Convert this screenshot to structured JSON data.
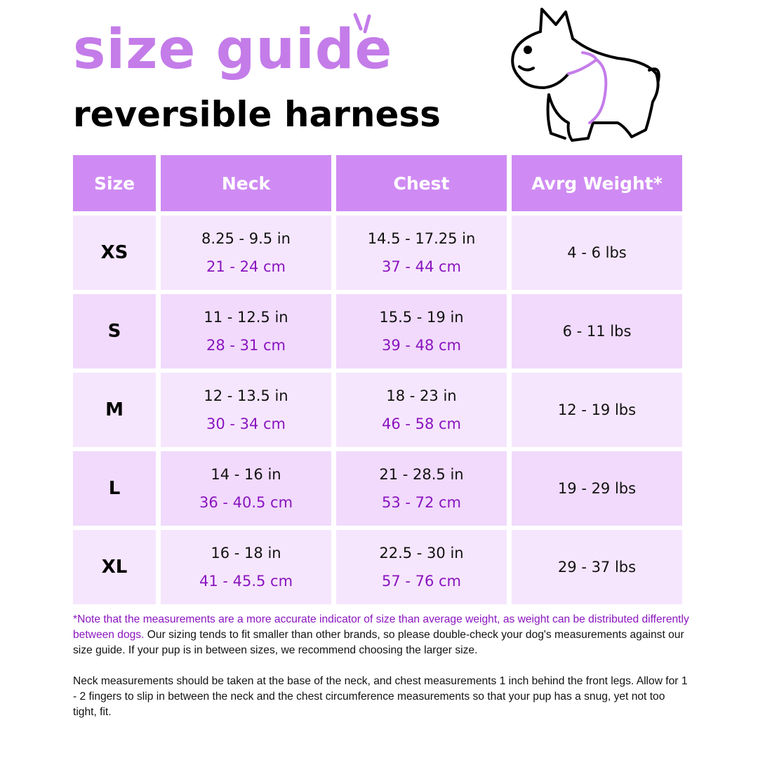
{
  "header": {
    "title": "size guide",
    "subtitle": "reversible harness"
  },
  "colors": {
    "header_bg": "#cf8bf3",
    "row_light": "#f6e6fd",
    "row_dark": "#f1dafc",
    "accent_text": "#8a14bf",
    "title": "#c47ce9"
  },
  "illustration": "french-bulldog-harness-icon",
  "table": {
    "columns": [
      "Size",
      "Neck",
      "Chest",
      "Avrg Weight*"
    ],
    "rows": [
      {
        "size": "XS",
        "neck_in": "8.25 - 9.5 in",
        "neck_cm": "21 - 24 cm",
        "chest_in": "14.5 - 17.25 in",
        "chest_cm": "37 - 44 cm",
        "weight": "4 - 6 lbs"
      },
      {
        "size": "S",
        "neck_in": "11 - 12.5 in",
        "neck_cm": "28 - 31 cm",
        "chest_in": "15.5 - 19 in",
        "chest_cm": "39 - 48 cm",
        "weight": "6 - 11 lbs"
      },
      {
        "size": "M",
        "neck_in": "12 - 13.5 in",
        "neck_cm": "30 - 34 cm",
        "chest_in": "18 - 23 in",
        "chest_cm": "46 - 58 cm",
        "weight": "12 - 19 lbs"
      },
      {
        "size": "L",
        "neck_in": "14 - 16 in",
        "neck_cm": "36 - 40.5 cm",
        "chest_in": "21 - 28.5 in",
        "chest_cm": "53 - 72 cm",
        "weight": "19 - 29 lbs"
      },
      {
        "size": "XL",
        "neck_in": "16 - 18 in",
        "neck_cm": "41 - 45.5 cm",
        "chest_in": "22.5 - 30 in",
        "chest_cm": "57 - 76 cm",
        "weight": "29 - 37 lbs"
      }
    ]
  },
  "notes": {
    "note_highlight": "*Note that the measurements are a more accurate indicator of size than average weight, as weight can be distributed differently between dogs.",
    "note_rest": " Our sizing tends to fit smaller than other brands, so please double-check your dog's measurements against our size guide. If your pup is in between sizes, we recommend choosing the larger size.",
    "measuring": "Neck measurements should be taken at the base of the neck, and chest measurements 1 inch behind the front legs. Allow for 1 - 2 fingers to slip in between the neck and the chest circumference measurements so that your pup has a snug, yet not too tight, fit."
  }
}
